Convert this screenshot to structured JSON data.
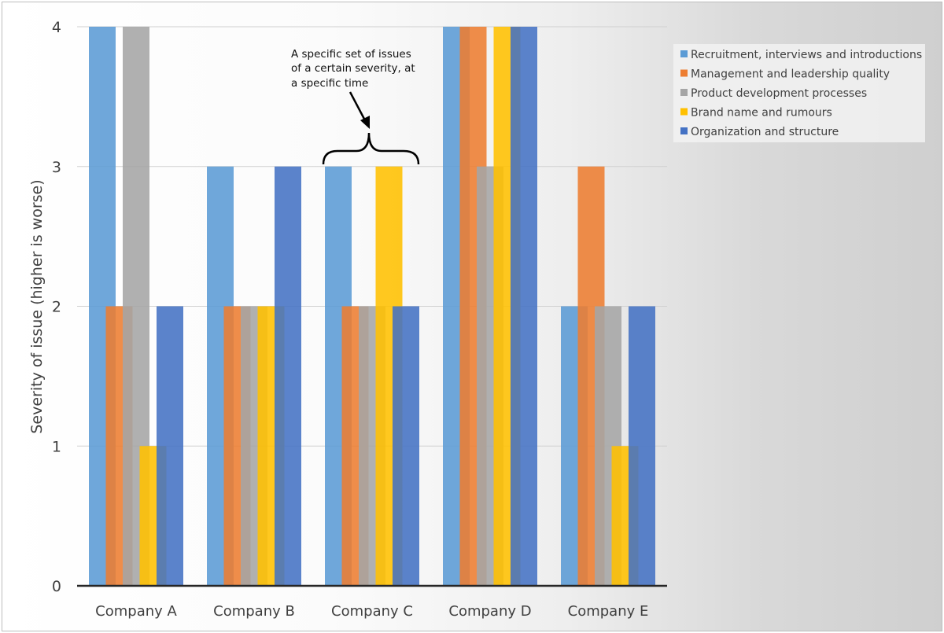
{
  "chart_data": {
    "type": "bar",
    "categories": [
      "Company A",
      "Company B",
      "Company C",
      "Company D",
      "Company E"
    ],
    "series": [
      {
        "name": "Recruitment, interviews and introductions",
        "color": "#5b9bd5",
        "values": [
          4,
          3,
          3,
          4,
          2
        ]
      },
      {
        "name": "Management and leadership quality",
        "color": "#ed7d31",
        "values": [
          2,
          2,
          2,
          4,
          3
        ]
      },
      {
        "name": "Product development processes",
        "color": "#a5a5a5",
        "values": [
          4,
          2,
          2,
          3,
          2
        ]
      },
      {
        "name": "Brand name and rumours",
        "color": "#ffc000",
        "values": [
          1,
          2,
          3,
          4,
          1
        ]
      },
      {
        "name": "Organization and structure",
        "color": "#4472c4",
        "values": [
          2,
          3,
          2,
          4,
          2
        ]
      }
    ],
    "ylabel": "Severity of issue (higher is worse)",
    "xlabel": "",
    "ylim": [
      0,
      4
    ],
    "yticks": [
      "0",
      "1",
      "2",
      "3",
      "4"
    ],
    "grid": true,
    "legend_position": "top-right",
    "annotation": {
      "lines": [
        "A specific set of issues",
        "of a certain severity, at",
        "a specific time"
      ],
      "target_category": "Company C"
    }
  }
}
